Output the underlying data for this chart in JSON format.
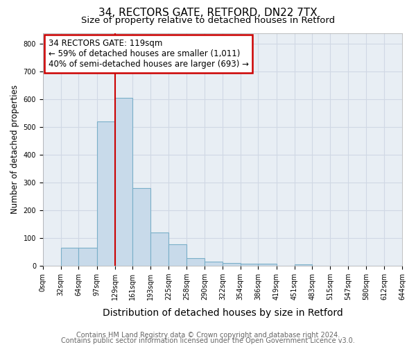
{
  "title1": "34, RECTORS GATE, RETFORD, DN22 7TX",
  "title2": "Size of property relative to detached houses in Retford",
  "xlabel": "Distribution of detached houses by size in Retford",
  "ylabel": "Number of detached properties",
  "footnote1": "Contains HM Land Registry data © Crown copyright and database right 2024.",
  "footnote2": "Contains public sector information licensed under the Open Government Licence v3.0.",
  "annotation_line1": "34 RECTORS GATE: 119sqm",
  "annotation_line2": "← 59% of detached houses are smaller (1,011)",
  "annotation_line3": "40% of semi-detached houses are larger (693) →",
  "bar_edges": [
    0,
    32,
    64,
    97,
    129,
    161,
    193,
    225,
    258,
    290,
    322,
    354,
    386,
    419,
    451,
    483,
    515,
    547,
    580,
    612,
    644
  ],
  "bar_heights": [
    0,
    65,
    65,
    520,
    605,
    280,
    120,
    78,
    28,
    15,
    10,
    8,
    8,
    0,
    5,
    0,
    0,
    0,
    0,
    0
  ],
  "bar_color": "#c8daea",
  "bar_edge_color": "#7aafc8",
  "red_line_x": 129,
  "ylim": [
    0,
    840
  ],
  "yticks": [
    0,
    100,
    200,
    300,
    400,
    500,
    600,
    700,
    800
  ],
  "annotation_box_color": "#ffffff",
  "annotation_box_edge": "#cc0000",
  "red_line_color": "#cc0000",
  "grid_color": "#d0d8e4",
  "bg_color": "#e8eef4",
  "title1_fontsize": 11,
  "title2_fontsize": 9.5,
  "xlabel_fontsize": 10,
  "ylabel_fontsize": 8.5,
  "footnote_fontsize": 7,
  "annotation_fontsize": 8.5,
  "tick_label_fontsize": 7
}
